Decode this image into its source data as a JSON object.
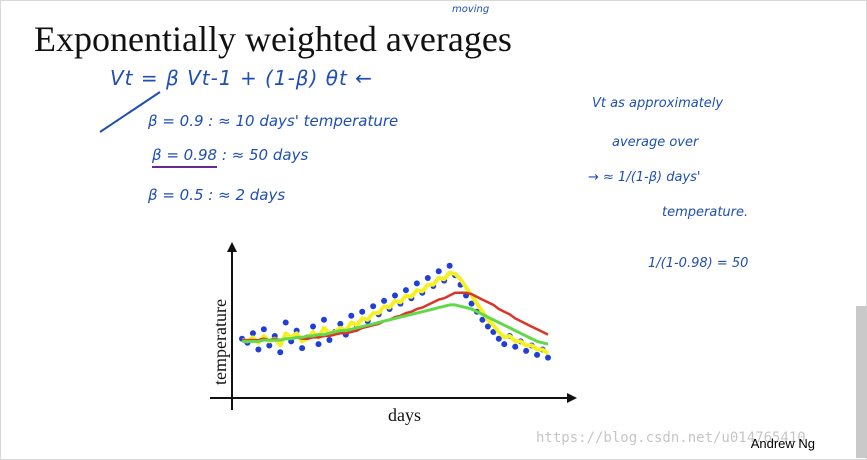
{
  "slide": {
    "title": "Exponentially weighted averages",
    "annotation_moving": "moving",
    "author": "Andrew Ng",
    "watermark": "https://blog.csdn.net/u014765410"
  },
  "notes": {
    "equation": "Vt = β Vt-1 + (1-β) θt ←",
    "row1": "β = 0.9   :  ≈ 10 days' temperature",
    "row2_beta": "β = 0.98",
    "row2_rest": "  :  ≈ 50 days",
    "row3": "β = 0.5   :  ≈ 2 days",
    "right1": "Vt  as  approximately",
    "right2": "average  over",
    "right3": "→  ≈  1/(1-β)  days'",
    "right4": "temperature.",
    "right5": "1/(1-0.98)  =  50"
  },
  "colors": {
    "ink_blue": "#1f4fb0",
    "purple": "#6a2a8e",
    "points": "#1f3fd6",
    "yellow": "#f4f021",
    "red": "#d9362a",
    "green": "#63d84a"
  },
  "chart_data": {
    "type": "scatter",
    "xlabel": "days",
    "ylabel": "temperature",
    "series": [
      {
        "kind": "points",
        "values": [
          0.38,
          0.35,
          0.42,
          0.3,
          0.45,
          0.33,
          0.4,
          0.28,
          0.5,
          0.36,
          0.44,
          0.31,
          0.39,
          0.47,
          0.34,
          0.52,
          0.37,
          0.43,
          0.49,
          0.41,
          0.55,
          0.46,
          0.58,
          0.51,
          0.62,
          0.56,
          0.66,
          0.6,
          0.7,
          0.64,
          0.74,
          0.68,
          0.79,
          0.72,
          0.83,
          0.77,
          0.88,
          0.81,
          0.92,
          0.85,
          0.78,
          0.7,
          0.64,
          0.58,
          0.52,
          0.47,
          0.43,
          0.38,
          0.34,
          0.4,
          0.32,
          0.36,
          0.29,
          0.33,
          0.26,
          0.3,
          0.24
        ]
      },
      {
        "kind": "beta_0.5",
        "values": [
          0.37,
          0.36,
          0.39,
          0.35,
          0.4,
          0.36,
          0.38,
          0.33,
          0.42,
          0.39,
          0.42,
          0.36,
          0.38,
          0.43,
          0.39,
          0.46,
          0.42,
          0.43,
          0.46,
          0.44,
          0.5,
          0.48,
          0.53,
          0.52,
          0.57,
          0.57,
          0.62,
          0.61,
          0.66,
          0.65,
          0.7,
          0.69,
          0.74,
          0.73,
          0.78,
          0.78,
          0.83,
          0.82,
          0.87,
          0.86,
          0.82,
          0.76,
          0.7,
          0.64,
          0.58,
          0.52,
          0.48,
          0.43,
          0.39,
          0.4,
          0.36,
          0.36,
          0.33,
          0.33,
          0.3,
          0.3,
          0.27
        ]
      },
      {
        "kind": "beta_0.9",
        "values": [
          0.37,
          0.37,
          0.37,
          0.37,
          0.38,
          0.37,
          0.38,
          0.37,
          0.38,
          0.38,
          0.39,
          0.38,
          0.38,
          0.39,
          0.39,
          0.4,
          0.4,
          0.41,
          0.42,
          0.42,
          0.43,
          0.44,
          0.46,
          0.47,
          0.48,
          0.49,
          0.51,
          0.52,
          0.54,
          0.55,
          0.57,
          0.58,
          0.6,
          0.61,
          0.63,
          0.65,
          0.67,
          0.68,
          0.7,
          0.72,
          0.72,
          0.72,
          0.71,
          0.69,
          0.67,
          0.65,
          0.63,
          0.6,
          0.58,
          0.56,
          0.53,
          0.51,
          0.49,
          0.47,
          0.45,
          0.43,
          0.41
        ]
      },
      {
        "kind": "beta_0.98",
        "values": [
          0.36,
          0.36,
          0.36,
          0.36,
          0.37,
          0.37,
          0.37,
          0.37,
          0.38,
          0.38,
          0.39,
          0.39,
          0.4,
          0.4,
          0.41,
          0.41,
          0.42,
          0.43,
          0.44,
          0.44,
          0.45,
          0.46,
          0.47,
          0.48,
          0.49,
          0.5,
          0.51,
          0.52,
          0.53,
          0.54,
          0.55,
          0.56,
          0.57,
          0.58,
          0.59,
          0.6,
          0.61,
          0.62,
          0.63,
          0.63,
          0.62,
          0.61,
          0.6,
          0.58,
          0.56,
          0.54,
          0.52,
          0.5,
          0.48,
          0.46,
          0.44,
          0.42,
          0.4,
          0.38,
          0.36,
          0.35,
          0.34
        ]
      }
    ],
    "grid": false
  }
}
